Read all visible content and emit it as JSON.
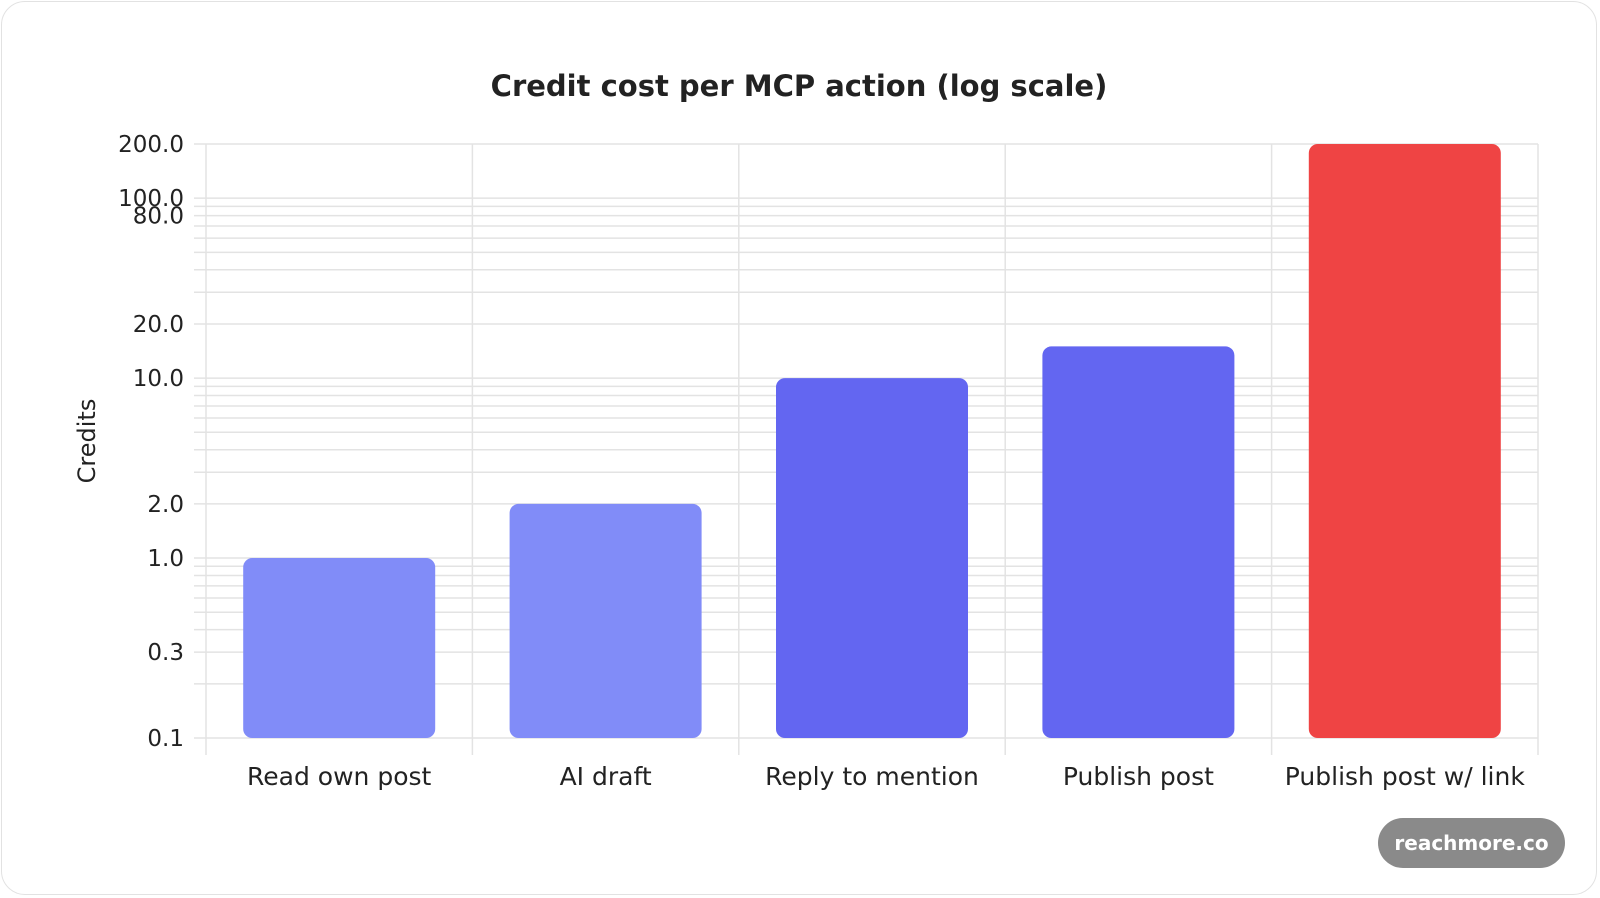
{
  "chart_data": {
    "type": "bar",
    "title": "Credit cost per MCP action (log scale)",
    "ylabel": "Credits",
    "xlabel": "",
    "yscale": "log",
    "ylim": [
      0.1,
      200
    ],
    "categories": [
      "Read own post",
      "AI draft",
      "Reply to mention",
      "Publish post",
      "Publish post w/ link"
    ],
    "values": [
      1,
      2,
      10,
      15,
      200
    ],
    "bar_colors": [
      "#818cf8",
      "#818cf8",
      "#6366f1",
      "#6366f1",
      "#ef4444"
    ],
    "y_ticks": [
      0.1,
      0.3,
      1,
      2,
      10,
      20,
      80,
      100,
      200
    ],
    "y_tick_labels": [
      "0.1",
      "0.3",
      "1.0",
      "2.0",
      "10.0",
      "20.0",
      "80.0",
      "100.0",
      "200.0"
    ],
    "grid": true
  },
  "watermark": {
    "label": "reachmore.co",
    "color": "#8a8a8a"
  }
}
